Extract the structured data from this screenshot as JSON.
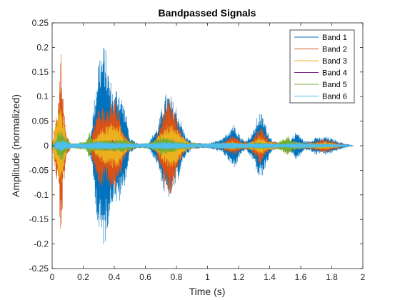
{
  "chart_data": {
    "type": "line",
    "title": "Bandpassed Signals",
    "xlabel": "Time (s)",
    "ylabel": "Amplitude (normalized)",
    "xlim": [
      0,
      2
    ],
    "ylim": [
      -0.25,
      0.25
    ],
    "xticks": [
      0,
      0.2,
      0.4,
      0.6,
      0.8,
      1,
      1.2,
      1.4,
      1.6,
      1.8,
      2
    ],
    "xtick_labels": [
      "0",
      "0.2",
      "0.4",
      "0.6",
      "0.8",
      "1",
      "1.2",
      "1.4",
      "1.6",
      "1.8",
      "2"
    ],
    "yticks": [
      -0.25,
      -0.2,
      -0.15,
      -0.1,
      -0.05,
      0,
      0.05,
      0.1,
      0.15,
      0.2,
      0.25
    ],
    "ytick_labels": [
      "-0.25",
      "-0.2",
      "-0.15",
      "-0.1",
      "-0.05",
      "0",
      "0.05",
      "0.1",
      "0.15",
      "0.2",
      "0.25"
    ],
    "grid": false,
    "legend_position": "top-right",
    "series": [
      {
        "name": "Band 1",
        "color": "#0072BD",
        "envelope": [
          [
            0.0,
            0.002
          ],
          [
            0.02,
            0.02
          ],
          [
            0.05,
            0.03
          ],
          [
            0.07,
            0.02
          ],
          [
            0.09,
            0.01
          ],
          [
            0.12,
            0.004
          ],
          [
            0.22,
            0.004
          ],
          [
            0.25,
            0.03
          ],
          [
            0.28,
            0.12
          ],
          [
            0.3,
            0.19
          ],
          [
            0.32,
            0.2
          ],
          [
            0.34,
            0.21
          ],
          [
            0.36,
            0.16
          ],
          [
            0.38,
            0.13
          ],
          [
            0.4,
            0.1
          ],
          [
            0.42,
            0.13
          ],
          [
            0.44,
            0.11
          ],
          [
            0.46,
            0.09
          ],
          [
            0.48,
            0.06
          ],
          [
            0.5,
            0.015
          ],
          [
            0.55,
            0.005
          ],
          [
            0.62,
            0.006
          ],
          [
            0.66,
            0.03
          ],
          [
            0.68,
            0.04
          ],
          [
            0.7,
            0.07
          ],
          [
            0.72,
            0.1
          ],
          [
            0.74,
            0.11
          ],
          [
            0.76,
            0.105
          ],
          [
            0.78,
            0.09
          ],
          [
            0.8,
            0.08
          ],
          [
            0.82,
            0.06
          ],
          [
            0.84,
            0.04
          ],
          [
            0.86,
            0.02
          ],
          [
            0.9,
            0.008
          ],
          [
            0.96,
            0.005
          ],
          [
            1.0,
            0.005
          ],
          [
            1.06,
            0.01
          ],
          [
            1.1,
            0.015
          ],
          [
            1.13,
            0.03
          ],
          [
            1.16,
            0.045
          ],
          [
            1.18,
            0.045
          ],
          [
            1.21,
            0.02
          ],
          [
            1.24,
            0.01
          ],
          [
            1.27,
            0.02
          ],
          [
            1.3,
            0.035
          ],
          [
            1.33,
            0.07
          ],
          [
            1.35,
            0.065
          ],
          [
            1.37,
            0.05
          ],
          [
            1.39,
            0.03
          ],
          [
            1.42,
            0.01
          ],
          [
            1.47,
            0.005
          ],
          [
            1.52,
            0.005
          ],
          [
            1.54,
            0.015
          ],
          [
            1.57,
            0.03
          ],
          [
            1.6,
            0.02
          ],
          [
            1.62,
            0.01
          ],
          [
            1.66,
            0.01
          ],
          [
            1.7,
            0.02
          ],
          [
            1.73,
            0.015
          ],
          [
            1.76,
            0.02
          ],
          [
            1.8,
            0.015
          ],
          [
            1.84,
            0.01
          ],
          [
            1.88,
            0.005
          ],
          [
            1.92,
            0.002
          ],
          [
            1.94,
            0.0
          ]
        ]
      },
      {
        "name": "Band 2",
        "color": "#D95319",
        "envelope": [
          [
            0.0,
            0.002
          ],
          [
            0.02,
            0.05
          ],
          [
            0.04,
            0.1
          ],
          [
            0.06,
            0.22
          ],
          [
            0.07,
            0.1
          ],
          [
            0.09,
            0.03
          ],
          [
            0.12,
            0.004
          ],
          [
            0.22,
            0.003
          ],
          [
            0.25,
            0.015
          ],
          [
            0.28,
            0.06
          ],
          [
            0.3,
            0.08
          ],
          [
            0.32,
            0.085
          ],
          [
            0.34,
            0.075
          ],
          [
            0.36,
            0.08
          ],
          [
            0.38,
            0.09
          ],
          [
            0.4,
            0.1
          ],
          [
            0.42,
            0.09
          ],
          [
            0.44,
            0.06
          ],
          [
            0.46,
            0.03
          ],
          [
            0.5,
            0.01
          ],
          [
            0.55,
            0.004
          ],
          [
            0.62,
            0.004
          ],
          [
            0.66,
            0.01
          ],
          [
            0.7,
            0.05
          ],
          [
            0.72,
            0.09
          ],
          [
            0.74,
            0.1
          ],
          [
            0.76,
            0.1
          ],
          [
            0.78,
            0.09
          ],
          [
            0.8,
            0.06
          ],
          [
            0.83,
            0.03
          ],
          [
            0.86,
            0.01
          ],
          [
            0.92,
            0.004
          ],
          [
            1.0,
            0.004
          ],
          [
            1.1,
            0.008
          ],
          [
            1.15,
            0.02
          ],
          [
            1.18,
            0.02
          ],
          [
            1.22,
            0.008
          ],
          [
            1.28,
            0.01
          ],
          [
            1.32,
            0.03
          ],
          [
            1.34,
            0.04
          ],
          [
            1.36,
            0.03
          ],
          [
            1.4,
            0.01
          ],
          [
            1.5,
            0.004
          ],
          [
            1.56,
            0.01
          ],
          [
            1.6,
            0.005
          ],
          [
            1.7,
            0.01
          ],
          [
            1.76,
            0.015
          ],
          [
            1.8,
            0.01
          ],
          [
            1.86,
            0.004
          ],
          [
            1.92,
            0.0
          ]
        ]
      },
      {
        "name": "Band 3",
        "color": "#EDB120",
        "envelope": [
          [
            0.0,
            0.002
          ],
          [
            0.02,
            0.04
          ],
          [
            0.04,
            0.07
          ],
          [
            0.06,
            0.08
          ],
          [
            0.08,
            0.04
          ],
          [
            0.1,
            0.01
          ],
          [
            0.14,
            0.003
          ],
          [
            0.22,
            0.002
          ],
          [
            0.26,
            0.01
          ],
          [
            0.3,
            0.03
          ],
          [
            0.34,
            0.04
          ],
          [
            0.38,
            0.045
          ],
          [
            0.42,
            0.05
          ],
          [
            0.44,
            0.04
          ],
          [
            0.46,
            0.02
          ],
          [
            0.5,
            0.008
          ],
          [
            0.56,
            0.003
          ],
          [
            0.64,
            0.004
          ],
          [
            0.68,
            0.02
          ],
          [
            0.72,
            0.04
          ],
          [
            0.76,
            0.045
          ],
          [
            0.8,
            0.04
          ],
          [
            0.84,
            0.02
          ],
          [
            0.88,
            0.008
          ],
          [
            0.96,
            0.003
          ],
          [
            1.1,
            0.004
          ],
          [
            1.16,
            0.01
          ],
          [
            1.22,
            0.005
          ],
          [
            1.3,
            0.01
          ],
          [
            1.34,
            0.02
          ],
          [
            1.38,
            0.01
          ],
          [
            1.5,
            0.004
          ],
          [
            1.58,
            0.008
          ],
          [
            1.64,
            0.005
          ],
          [
            1.76,
            0.008
          ],
          [
            1.82,
            0.005
          ],
          [
            1.9,
            0.0
          ]
        ]
      },
      {
        "name": "Band 4",
        "color": "#7E2F8E",
        "envelope": [
          [
            0.0,
            0.001
          ],
          [
            0.03,
            0.01
          ],
          [
            0.06,
            0.02
          ],
          [
            0.09,
            0.01
          ],
          [
            0.14,
            0.002
          ],
          [
            0.26,
            0.004
          ],
          [
            0.32,
            0.01
          ],
          [
            0.4,
            0.012
          ],
          [
            0.46,
            0.006
          ],
          [
            0.54,
            0.002
          ],
          [
            0.68,
            0.005
          ],
          [
            0.76,
            0.01
          ],
          [
            0.84,
            0.005
          ],
          [
            0.96,
            0.002
          ],
          [
            1.14,
            0.004
          ],
          [
            1.2,
            0.003
          ],
          [
            1.34,
            0.006
          ],
          [
            1.5,
            0.002
          ],
          [
            1.62,
            0.004
          ],
          [
            1.78,
            0.003
          ],
          [
            1.9,
            0.0
          ]
        ]
      },
      {
        "name": "Band 5",
        "color": "#77AC30",
        "envelope": [
          [
            0.0,
            0.001
          ],
          [
            0.02,
            0.01
          ],
          [
            0.04,
            0.03
          ],
          [
            0.06,
            0.035
          ],
          [
            0.08,
            0.02
          ],
          [
            0.12,
            0.004
          ],
          [
            0.22,
            0.01
          ],
          [
            0.24,
            0.03
          ],
          [
            0.26,
            0.012
          ],
          [
            0.32,
            0.012
          ],
          [
            0.4,
            0.012
          ],
          [
            0.46,
            0.015
          ],
          [
            0.5,
            0.01
          ],
          [
            0.56,
            0.003
          ],
          [
            0.66,
            0.01
          ],
          [
            0.7,
            0.02
          ],
          [
            0.76,
            0.015
          ],
          [
            0.84,
            0.008
          ],
          [
            0.96,
            0.003
          ],
          [
            1.06,
            0.006
          ],
          [
            1.16,
            0.008
          ],
          [
            1.26,
            0.006
          ],
          [
            1.34,
            0.008
          ],
          [
            1.44,
            0.005
          ],
          [
            1.52,
            0.02
          ],
          [
            1.54,
            0.012
          ],
          [
            1.6,
            0.005
          ],
          [
            1.7,
            0.005
          ],
          [
            1.8,
            0.004
          ],
          [
            1.9,
            0.0
          ]
        ]
      },
      {
        "name": "Band 6",
        "color": "#4DBEEE",
        "envelope": [
          [
            0.0,
            0.001
          ],
          [
            0.03,
            0.01
          ],
          [
            0.06,
            0.012
          ],
          [
            0.09,
            0.008
          ],
          [
            0.14,
            0.005
          ],
          [
            0.2,
            0.006
          ],
          [
            0.26,
            0.007
          ],
          [
            0.32,
            0.008
          ],
          [
            0.4,
            0.007
          ],
          [
            0.48,
            0.006
          ],
          [
            0.56,
            0.004
          ],
          [
            0.64,
            0.006
          ],
          [
            0.72,
            0.008
          ],
          [
            0.8,
            0.007
          ],
          [
            0.88,
            0.005
          ],
          [
            0.96,
            0.004
          ],
          [
            1.04,
            0.006
          ],
          [
            1.1,
            0.007
          ],
          [
            1.18,
            0.006
          ],
          [
            1.26,
            0.005
          ],
          [
            1.34,
            0.006
          ],
          [
            1.42,
            0.005
          ],
          [
            1.5,
            0.004
          ],
          [
            1.56,
            0.006
          ],
          [
            1.64,
            0.005
          ],
          [
            1.72,
            0.004
          ],
          [
            1.8,
            0.004
          ],
          [
            1.88,
            0.003
          ],
          [
            1.94,
            0.0
          ]
        ]
      }
    ]
  }
}
